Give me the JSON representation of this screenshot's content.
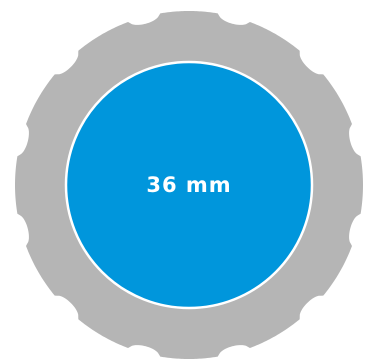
{
  "diagram": {
    "size_label": "36 mm",
    "colors": {
      "outer_ring": "#b5b5b5",
      "inner_disc": "#0096dc",
      "disc_border": "#ffffff",
      "label": "#ffffff"
    },
    "ring_notch_count": 12
  }
}
